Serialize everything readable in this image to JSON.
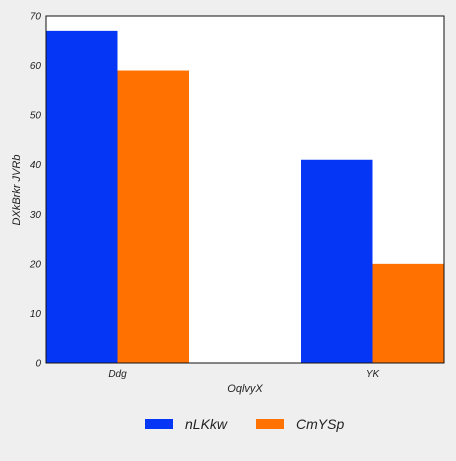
{
  "chart_data": {
    "type": "bar",
    "title": "",
    "xlabel": "OqlvyX",
    "ylabel": "DXkBrkr  JVRb",
    "categories": [
      "Ddg",
      "YK"
    ],
    "series": [
      {
        "name": "nLKkw",
        "values": [
          67,
          41
        ],
        "color": "#0535f5"
      },
      {
        "name": "CmYSp",
        "values": [
          59,
          20
        ],
        "color": "#ff7100"
      }
    ],
    "ylim": [
      0,
      70
    ],
    "yticks": [
      0,
      10,
      20,
      30,
      40,
      50,
      60,
      70
    ],
    "grid": false,
    "legend_position": "bottom-center"
  }
}
